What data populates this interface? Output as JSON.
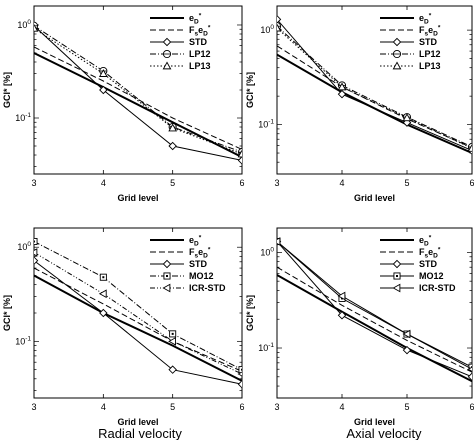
{
  "chart_data": [
    {
      "type": "line",
      "xlabel": "Grid level",
      "ylabel": "GCI* [%]",
      "x": [
        3,
        4,
        5,
        6
      ],
      "xlim": [
        3,
        6
      ],
      "ylim": [
        0.025,
        1.6
      ],
      "yscale": "log",
      "legend_position": "top-right",
      "series": [
        {
          "name": "eD*",
          "name_main": "e",
          "name_sub": "D",
          "name_sup": "*",
          "style": "solid-thick",
          "marker": "none",
          "values": [
            0.5,
            0.215,
            0.09,
            0.038
          ]
        },
        {
          "name": "FseD*",
          "name_main": "F",
          "name_sub": "s",
          "name_main2": "e",
          "name_sub2": "D",
          "name_sup": "*",
          "style": "dashed",
          "marker": "none",
          "values": [
            0.58,
            0.25,
            0.1,
            0.046
          ]
        },
        {
          "name": "STD",
          "style": "solid",
          "marker": "diamond",
          "values": [
            0.98,
            0.2,
            0.05,
            0.035
          ]
        },
        {
          "name": "LP12",
          "style": "dashdot",
          "marker": "circle",
          "values": [
            0.98,
            0.32,
            0.08,
            0.043
          ]
        },
        {
          "name": "LP13",
          "style": "dotted",
          "marker": "triangle",
          "values": [
            0.92,
            0.3,
            0.078,
            0.041
          ]
        }
      ]
    },
    {
      "type": "line",
      "xlabel": "Grid level",
      "ylabel": "GCI* [%]",
      "x": [
        3,
        4,
        5,
        6
      ],
      "xlim": [
        3,
        6
      ],
      "ylim": [
        0.03,
        1.8
      ],
      "yscale": "log",
      "legend_position": "top-right",
      "series": [
        {
          "name": "eD*",
          "name_main": "e",
          "name_sub": "D",
          "name_sup": "*",
          "style": "solid-thick",
          "marker": "none",
          "values": [
            0.55,
            0.22,
            0.1,
            0.05
          ]
        },
        {
          "name": "FseD*",
          "name_main": "F",
          "name_sub": "s",
          "name_main2": "e",
          "name_sub2": "D",
          "name_sup": "*",
          "style": "dashed",
          "marker": "none",
          "values": [
            0.68,
            0.25,
            0.115,
            0.057
          ]
        },
        {
          "name": "STD",
          "style": "solid",
          "marker": "diamond",
          "values": [
            1.3,
            0.21,
            0.105,
            0.053
          ]
        },
        {
          "name": "LP12",
          "style": "dashdot",
          "marker": "circle",
          "values": [
            1.1,
            0.26,
            0.12,
            0.058
          ]
        },
        {
          "name": "LP13",
          "style": "dotted",
          "marker": "triangle",
          "values": [
            1.05,
            0.25,
            0.118,
            0.056
          ]
        }
      ]
    },
    {
      "type": "line",
      "xlabel": "Grid level",
      "ylabel": "GCI* [%]",
      "x": [
        3,
        4,
        5,
        6
      ],
      "xlim": [
        3,
        6
      ],
      "ylim": [
        0.025,
        1.6
      ],
      "yscale": "log",
      "legend_position": "top-right",
      "series": [
        {
          "name": "eD*",
          "name_main": "e",
          "name_sub": "D",
          "name_sup": "*",
          "style": "solid-thick",
          "marker": "none",
          "values": [
            0.5,
            0.2,
            0.09,
            0.038
          ]
        },
        {
          "name": "FseD*",
          "name_main": "F",
          "name_sub": "s",
          "name_main2": "e",
          "name_sub2": "D",
          "name_sup": "*",
          "style": "dashed",
          "marker": "none",
          "values": [
            0.6,
            0.25,
            0.1,
            0.048
          ]
        },
        {
          "name": "STD",
          "style": "solid",
          "marker": "diamond",
          "values": [
            0.72,
            0.2,
            0.05,
            0.035
          ]
        },
        {
          "name": "MO12",
          "style": "dashdot",
          "marker": "square",
          "values": [
            1.15,
            0.48,
            0.12,
            0.05
          ]
        },
        {
          "name": "ICR-STD",
          "style": "dashdot2",
          "marker": "left-triangle",
          "values": [
            0.88,
            0.32,
            0.1,
            0.045
          ]
        }
      ]
    },
    {
      "type": "line",
      "xlabel": "Grid level",
      "ylabel": "GCI* [%]",
      "x": [
        3,
        4,
        5,
        6
      ],
      "xlim": [
        3,
        6
      ],
      "ylim": [
        0.03,
        1.8
      ],
      "yscale": "log",
      "legend_position": "top-right",
      "series": [
        {
          "name": "eD*",
          "name_main": "e",
          "name_sub": "D",
          "name_sup": "*",
          "style": "solid-thick",
          "marker": "none",
          "values": [
            0.58,
            0.24,
            0.1,
            0.045
          ]
        },
        {
          "name": "FseD*",
          "name_main": "F",
          "name_sub": "s",
          "name_main2": "e",
          "name_sub2": "D",
          "name_sup": "*",
          "style": "dashed",
          "marker": "none",
          "values": [
            0.7,
            0.28,
            0.12,
            0.056
          ]
        },
        {
          "name": "STD",
          "style": "solid",
          "marker": "diamond",
          "values": [
            1.3,
            0.22,
            0.095,
            0.05
          ]
        },
        {
          "name": "MO12",
          "style": "solid",
          "marker": "square",
          "values": [
            1.3,
            0.33,
            0.14,
            0.063
          ]
        },
        {
          "name": "ICR-STD",
          "style": "solid",
          "marker": "left-triangle",
          "values": [
            1.3,
            0.35,
            0.14,
            0.06
          ]
        }
      ]
    }
  ],
  "captions": {
    "radial": "Radial velocity",
    "axial": "Axial velocity"
  }
}
